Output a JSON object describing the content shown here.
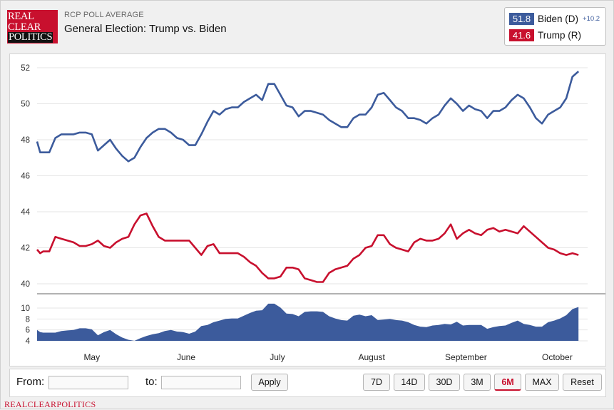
{
  "header": {
    "logo_lines": [
      "REAL",
      "CLEAR",
      "POLITICS"
    ],
    "kicker": "RCP POLL AVERAGE",
    "title": "General Election: Trump vs. Biden"
  },
  "legend": {
    "biden": {
      "value": "51.8",
      "label": "Biden (D)",
      "spread": "+10.2",
      "color": "#3c5b9c"
    },
    "trump": {
      "value": "41.6",
      "label": "Trump (R)",
      "color": "#c8102e"
    }
  },
  "chart_data": [
    {
      "type": "line",
      "title": "",
      "x": [
        0,
        1,
        2,
        4,
        6,
        8,
        10,
        12,
        14,
        16,
        18,
        20,
        22,
        24,
        26,
        28,
        30,
        32,
        34,
        36,
        38,
        40,
        42,
        44,
        46,
        48,
        50,
        52,
        54,
        56,
        58,
        60,
        62,
        64,
        66,
        68,
        70,
        72,
        74,
        76,
        78,
        80,
        82,
        84,
        86,
        88,
        90,
        92,
        94,
        96,
        98,
        100,
        102,
        104,
        106,
        108,
        110,
        112,
        114,
        116,
        118,
        120,
        122,
        124,
        126,
        128,
        130,
        132,
        134,
        136,
        138,
        140,
        142,
        144,
        146,
        148,
        150,
        152,
        154,
        156,
        158,
        160,
        162,
        164,
        166,
        168,
        170,
        172,
        174,
        176,
        178
      ],
      "series": [
        {
          "name": "Biden (D)",
          "color": "#3c5b9c",
          "values": [
            47.9,
            47.3,
            47.3,
            47.3,
            48.1,
            48.3,
            48.3,
            48.3,
            48.4,
            48.4,
            48.3,
            47.4,
            47.7,
            48.0,
            47.5,
            47.1,
            46.8,
            47.0,
            47.6,
            48.1,
            48.4,
            48.6,
            48.6,
            48.4,
            48.1,
            48.0,
            47.7,
            47.7,
            48.3,
            49.0,
            49.6,
            49.4,
            49.7,
            49.8,
            49.8,
            50.1,
            50.3,
            50.5,
            50.2,
            51.1,
            51.1,
            50.5,
            49.9,
            49.8,
            49.3,
            49.6,
            49.6,
            49.5,
            49.4,
            49.1,
            48.9,
            48.7,
            48.7,
            49.2,
            49.4,
            49.4,
            49.8,
            50.5,
            50.6,
            50.2,
            49.8,
            49.6,
            49.2,
            49.2,
            49.1,
            48.9,
            49.2,
            49.4,
            49.9,
            50.3,
            50.0,
            49.6,
            49.9,
            49.7,
            49.6,
            49.2,
            49.6,
            49.6,
            49.8,
            50.2,
            50.5,
            50.3,
            49.8,
            49.2,
            48.9,
            49.4,
            49.6,
            49.8,
            50.3,
            51.5,
            51.8
          ]
        },
        {
          "name": "Trump (R)",
          "color": "#c8102e",
          "values": [
            41.9,
            41.7,
            41.8,
            41.8,
            42.6,
            42.5,
            42.4,
            42.3,
            42.1,
            42.1,
            42.2,
            42.4,
            42.1,
            42.0,
            42.3,
            42.5,
            42.6,
            43.3,
            43.8,
            43.9,
            43.2,
            42.6,
            42.4,
            42.4,
            42.4,
            42.4,
            42.4,
            42.0,
            41.6,
            42.1,
            42.2,
            41.7,
            41.7,
            41.7,
            41.7,
            41.5,
            41.2,
            41.0,
            40.6,
            40.3,
            40.3,
            40.4,
            40.9,
            40.9,
            40.8,
            40.3,
            40.2,
            40.1,
            40.1,
            40.6,
            40.8,
            40.9,
            41.0,
            41.4,
            41.6,
            42.0,
            42.1,
            42.7,
            42.7,
            42.2,
            42.0,
            41.9,
            41.8,
            42.3,
            42.5,
            42.4,
            42.4,
            42.5,
            42.8,
            43.3,
            42.5,
            42.8,
            43.0,
            42.8,
            42.7,
            43.0,
            43.1,
            42.9,
            43.0,
            42.9,
            42.8,
            43.2,
            42.9,
            42.6,
            42.3,
            42.0,
            41.9,
            41.7,
            41.6,
            41.7,
            41.6
          ]
        }
      ],
      "yticks": [
        40,
        42,
        44,
        46,
        48,
        50,
        52
      ],
      "ylim": [
        39.5,
        52.5
      ]
    },
    {
      "type": "area",
      "title": "",
      "series": [
        {
          "name": "",
          "color": "#3c5b9c",
          "values": [
            6.0,
            5.6,
            5.5,
            5.5,
            5.5,
            5.8,
            5.9,
            6.0,
            6.3,
            6.3,
            6.1,
            5.0,
            5.6,
            6.0,
            5.2,
            4.6,
            4.2,
            4.0,
            4.5,
            4.9,
            5.2,
            5.4,
            5.8,
            6.0,
            5.7,
            5.6,
            5.3,
            5.7,
            6.7,
            6.9,
            7.4,
            7.7,
            8.0,
            8.1,
            8.1,
            8.6,
            9.1,
            9.5,
            9.6,
            10.8,
            10.8,
            10.1,
            9.0,
            8.9,
            8.5,
            9.3,
            9.4,
            9.4,
            9.3,
            8.5,
            8.1,
            7.8,
            7.7,
            8.6,
            8.8,
            8.5,
            8.7,
            7.8,
            7.9,
            8.0,
            7.8,
            7.7,
            7.4,
            6.9,
            6.6,
            6.5,
            6.8,
            6.9,
            7.1,
            7.0,
            7.5,
            6.8,
            6.9,
            6.9,
            6.9,
            6.2,
            6.5,
            6.7,
            6.8,
            7.3,
            7.7,
            7.1,
            6.9,
            6.6,
            6.6,
            7.4,
            7.7,
            8.1,
            8.7,
            9.8,
            10.2
          ]
        }
      ],
      "yticks": [
        4,
        6,
        8,
        10
      ]
    }
  ],
  "x_axis": {
    "ticks": [
      {
        "x": 18,
        "label": "May"
      },
      {
        "x": 49,
        "label": "June"
      },
      {
        "x": 79,
        "label": "July"
      },
      {
        "x": 110,
        "label": "August"
      },
      {
        "x": 141,
        "label": "September"
      },
      {
        "x": 171,
        "label": "October"
      }
    ],
    "xlim": [
      0,
      181
    ]
  },
  "controls": {
    "from_label": "From:",
    "to_label": "to:",
    "apply": "Apply",
    "ranges": [
      "7D",
      "14D",
      "30D",
      "3M",
      "6M",
      "MAX"
    ],
    "active_range": "6M",
    "reset": "Reset"
  },
  "footer": "REALCLEARPOLITICS"
}
